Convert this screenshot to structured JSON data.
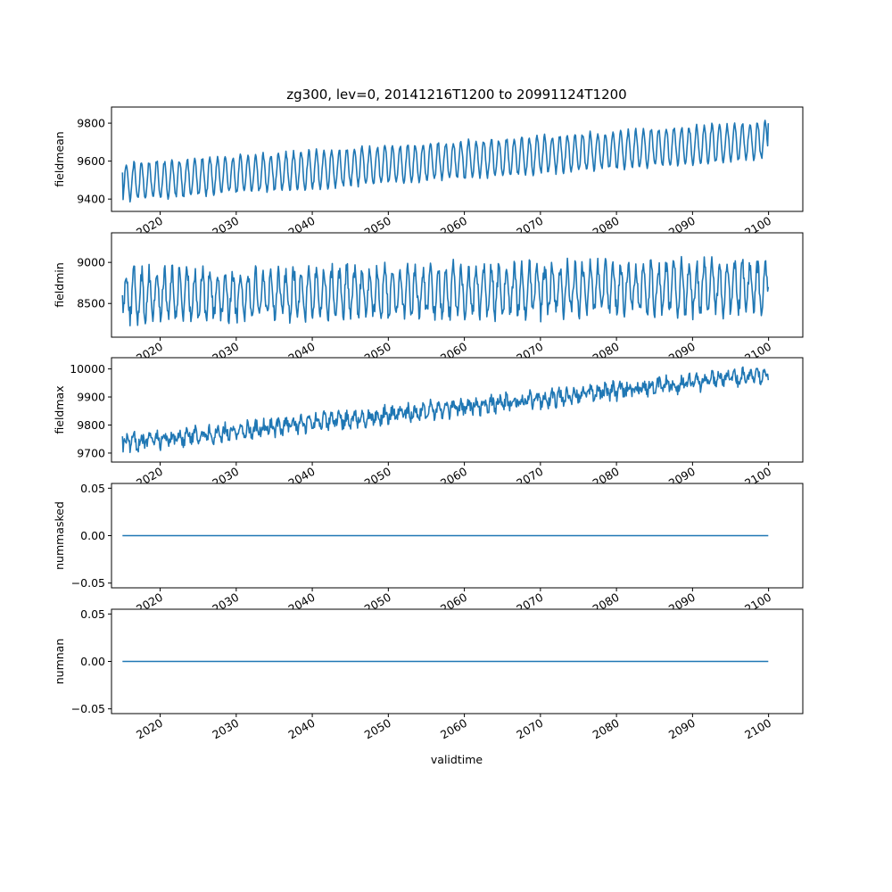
{
  "chart_data": {
    "type": "line",
    "title": "zg300, lev=0, 20141216T1200 to 20991124T1200",
    "xlabel": "validtime",
    "x_range": [
      "2015-01",
      "2099-12"
    ],
    "xlim": [
      2013.6,
      2104.5
    ],
    "x_ticks": [
      "2020",
      "2030",
      "2040",
      "2050",
      "2060",
      "2070",
      "2080",
      "2090",
      "2100"
    ],
    "line_color": "#1f77b4",
    "grid": false,
    "legend": "none",
    "panels": [
      {
        "id": "fieldmean",
        "ylabel": "fieldmean",
        "ylim": [
          9335,
          9885
        ],
        "yticks": [
          "9400",
          "9600",
          "9800"
        ],
        "series": {
          "start_level": 9490,
          "end_level": 9710,
          "seasonal_amplitude": 95,
          "noise": 14,
          "first_value": 9540,
          "last_value": 9800
        }
      },
      {
        "id": "fieldmin",
        "ylabel": "fieldmin",
        "ylim": [
          8090,
          9360
        ],
        "yticks": [
          "8500",
          "9000"
        ],
        "series": {
          "start_level": 8600,
          "end_level": 8700,
          "seasonal_amplitude": 280,
          "noise": 110,
          "first_value": 8600,
          "last_value": 8700
        }
      },
      {
        "id": "fieldmax",
        "ylabel": "fieldmax",
        "ylim": [
          9668,
          10040
        ],
        "yticks": [
          "9700",
          "9800",
          "9900",
          "10000"
        ],
        "series": {
          "start_level": 9735,
          "end_level": 9980,
          "seasonal_amplitude": 18,
          "noise": 22,
          "first_value": 9760,
          "last_value": 9960
        }
      },
      {
        "id": "nummasked",
        "ylabel": "nummasked",
        "ylim": [
          -0.055,
          0.055
        ],
        "yticks": [
          "0.05",
          "0.00",
          "−0.05"
        ],
        "series": {
          "constant": 0.0
        }
      },
      {
        "id": "numnan",
        "ylabel": "numnan",
        "ylim": [
          -0.055,
          0.055
        ],
        "yticks": [
          "0.05",
          "0.00",
          "−0.05"
        ],
        "series": {
          "constant": 0.0
        }
      }
    ]
  }
}
